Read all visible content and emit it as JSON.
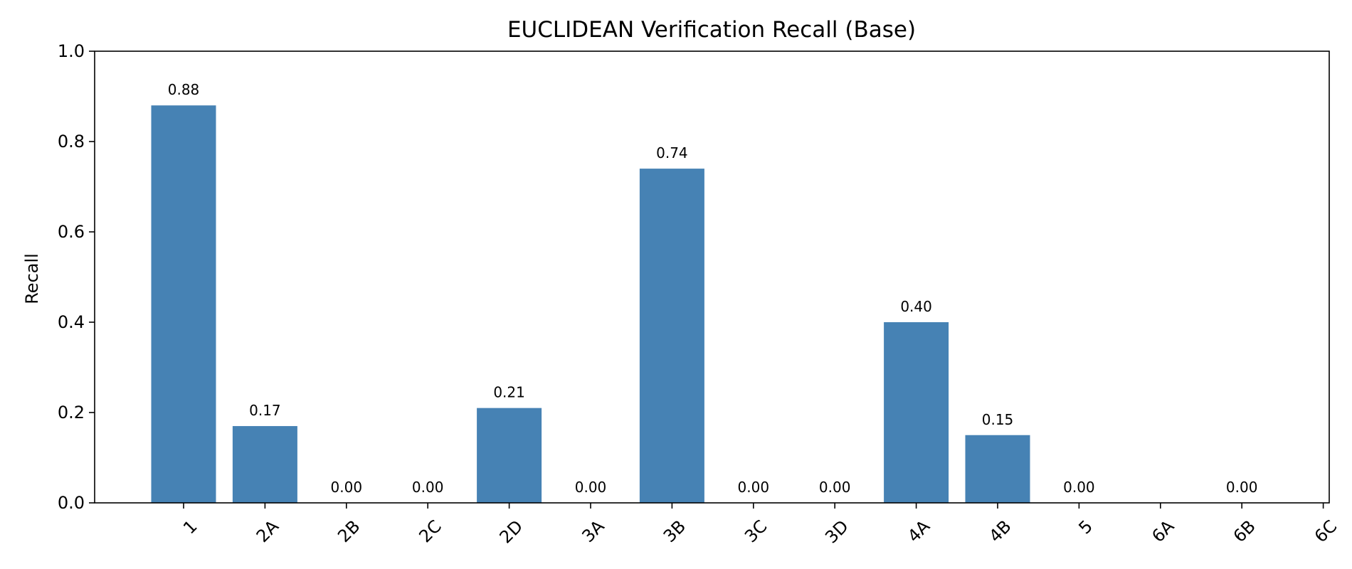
{
  "chart_data": {
    "type": "bar",
    "title": "EUCLIDEAN Verification Recall (Base)",
    "xlabel": "",
    "ylabel": "Recall",
    "ylim": [
      0,
      1.0
    ],
    "yticks": [
      "0.0",
      "0.2",
      "0.4",
      "0.6",
      "0.8",
      "1.0"
    ],
    "categories": [
      "1",
      "2A",
      "2B",
      "2C",
      "2D",
      "3A",
      "3B",
      "3C",
      "3D",
      "4A",
      "4B",
      "5",
      "6A",
      "6B",
      "6C"
    ],
    "values": [
      0.88,
      0.17,
      0.0,
      0.0,
      0.21,
      0.0,
      0.74,
      0.0,
      0.0,
      0.4,
      0.15,
      0.0,
      null,
      0.0,
      null
    ],
    "value_labels": [
      "0.88",
      "0.17",
      "0.00",
      "0.00",
      "0.21",
      "0.00",
      "0.74",
      "0.00",
      "0.00",
      "0.40",
      "0.15",
      "0.00",
      "",
      "0.00",
      ""
    ],
    "bar_color": "#4682b4",
    "grid": false,
    "legend": "none"
  }
}
